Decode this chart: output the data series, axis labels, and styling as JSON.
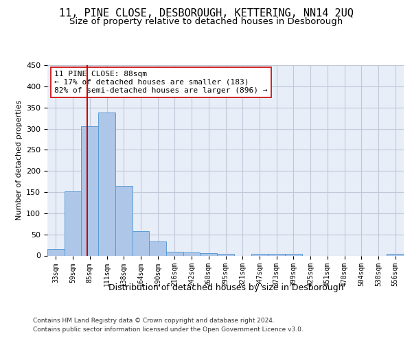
{
  "title": "11, PINE CLOSE, DESBOROUGH, KETTERING, NN14 2UQ",
  "subtitle": "Size of property relative to detached houses in Desborough",
  "xlabel": "Distribution of detached houses by size in Desborough",
  "ylabel": "Number of detached properties",
  "bar_labels": [
    "33sqm",
    "59sqm",
    "85sqm",
    "111sqm",
    "138sqm",
    "164sqm",
    "190sqm",
    "216sqm",
    "242sqm",
    "268sqm",
    "295sqm",
    "321sqm",
    "347sqm",
    "373sqm",
    "399sqm",
    "425sqm",
    "451sqm",
    "478sqm",
    "504sqm",
    "530sqm",
    "556sqm"
  ],
  "bar_values": [
    15,
    152,
    305,
    338,
    165,
    57,
    33,
    9,
    7,
    5,
    4,
    0,
    4,
    4,
    4,
    0,
    0,
    0,
    0,
    0,
    4
  ],
  "bar_color": "#aec6e8",
  "bar_edge_color": "#5b9bd5",
  "vline_color": "#cc0000",
  "vline_pos": 1.83,
  "annotation_text": "11 PINE CLOSE: 88sqm\n← 17% of detached houses are smaller (183)\n82% of semi-detached houses are larger (896) →",
  "annotation_box_color": "white",
  "annotation_box_edgecolor": "#cc0000",
  "ylim": [
    0,
    450
  ],
  "yticks": [
    0,
    50,
    100,
    150,
    200,
    250,
    300,
    350,
    400,
    450
  ],
  "grid_color": "#c0c8d8",
  "bg_color": "#e8eef8",
  "footer_line1": "Contains HM Land Registry data © Crown copyright and database right 2024.",
  "footer_line2": "Contains public sector information licensed under the Open Government Licence v3.0.",
  "title_fontsize": 11,
  "subtitle_fontsize": 9.5,
  "annotation_fontsize": 8,
  "ylabel_fontsize": 8,
  "xlabel_fontsize": 9,
  "footer_fontsize": 6.5
}
